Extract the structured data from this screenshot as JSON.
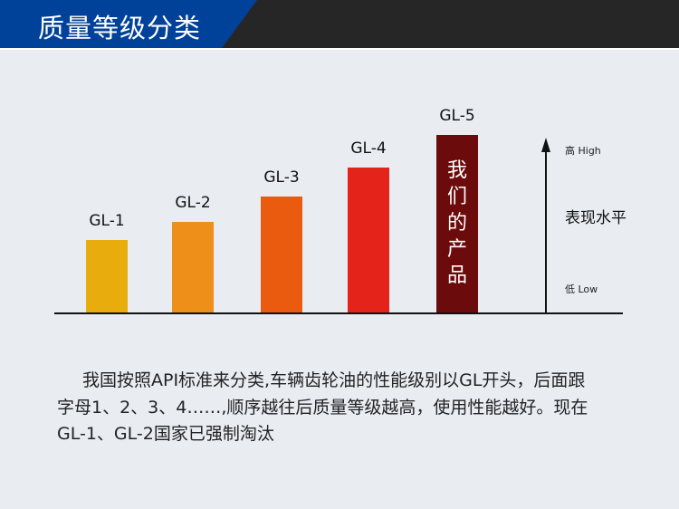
{
  "header": {
    "title": "质量等级分类"
  },
  "chart_data": {
    "type": "bar",
    "title": "",
    "categories": [
      "GL-1",
      "GL-2",
      "GL-3",
      "GL-4",
      "GL-5"
    ],
    "values": [
      1,
      1.25,
      1.6,
      2.0,
      2.45
    ],
    "colors": [
      "#e8ac0c",
      "#ee8f1a",
      "#ea5a0f",
      "#e4231b",
      "#6b0b0b"
    ],
    "highlight_label": [
      "我",
      "们",
      "的",
      "产",
      "品"
    ],
    "ylabel": "表现水平",
    "y_high_label": "高 High",
    "y_low_label": "低 Low",
    "ylim": [
      0,
      2.6
    ],
    "grid": false
  },
  "description": {
    "lines": [
      "我国按照API标准来分类,车辆齿轮油的性能级别以GL开头，后面跟",
      "字母1、2、3、4……,顺序越往后质量等级越高，使用性能越好。现在",
      "GL-1、GL-2国家已强制淘汰"
    ]
  }
}
